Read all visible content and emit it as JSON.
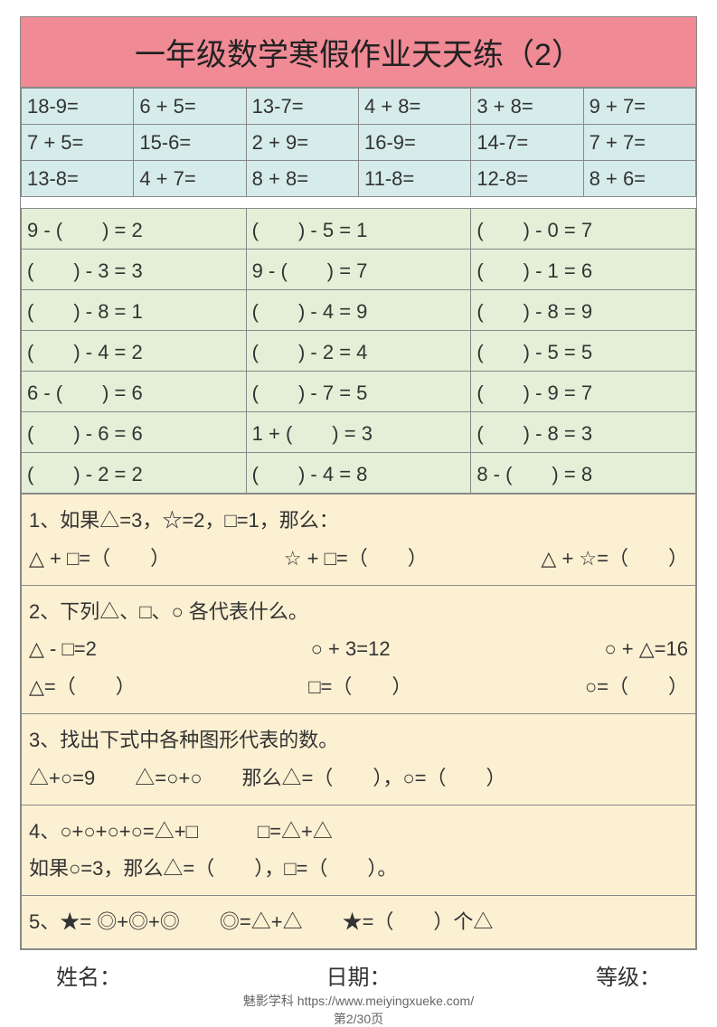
{
  "title": "一年级数学寒假作业天天练（2）",
  "section1_bg": "#d5ecea",
  "section2_bg": "#e3efd6",
  "section3_bg": "#fbf0d2",
  "title_bg": "#f08a95",
  "border_color": "#888888",
  "arith": {
    "rows": [
      [
        "18-9=",
        "6 + 5=",
        "13-7=",
        "4 + 8=",
        "3 + 8=",
        "9 + 7="
      ],
      [
        "7 + 5=",
        "15-6=",
        "2 + 9=",
        "16-9=",
        "14-7=",
        "7 + 7="
      ],
      [
        "13-8=",
        "4 + 7=",
        "8 + 8=",
        "11-8=",
        "12-8=",
        "8 + 6="
      ]
    ]
  },
  "fillblank": {
    "rows": [
      [
        "9 - (　　) = 2",
        "(　　) - 5 = 1",
        "(　　) - 0 = 7"
      ],
      [
        "(　　) - 3 = 3",
        "9 - (　　) = 7",
        "(　　) - 1 = 6"
      ],
      [
        "(　　) - 8 = 1",
        "(　　) - 4 = 9",
        "(　　) - 8 = 9"
      ],
      [
        "(　　) - 4 = 2",
        "(　　) - 2 = 4",
        "(　　) - 5 = 5"
      ],
      [
        "6 - (　　) = 6",
        "(　　) - 7 = 5",
        "(　　) - 9 = 7"
      ],
      [
        "(　　) - 6 = 6",
        "1 + (　　) = 3",
        "(　　) - 8 = 3"
      ],
      [
        "(　　) - 2 = 2",
        "(　　) - 4 = 8",
        "8 - (　　) = 8"
      ]
    ]
  },
  "problems": {
    "p1": {
      "prompt": "1、如果△=3，☆=2，□=1，那么：",
      "items": [
        "△ + □=（　　）",
        "☆ + □=（　　）",
        "△ + ☆=（　　）"
      ]
    },
    "p2": {
      "prompt": "2、下列△、□、○ 各代表什么。",
      "line1": [
        "△ - □=2",
        "○ + 3=12",
        "○ + △=16"
      ],
      "line2": [
        "△=（　　）",
        "□=（　　）",
        "○=（　　）"
      ]
    },
    "p3": {
      "prompt": "3、找出下式中各种图形代表的数。",
      "line": "△+○=9　　△=○+○　　那么△=（　　），○=（　　）"
    },
    "p4": {
      "line1": "4、○+○+○+○=△+□　　　□=△+△",
      "line2": "如果○=3，那么△=（　　），□=（　　）。"
    },
    "p5": {
      "line": "5、★= ◎+◎+◎　　◎=△+△　　★=（　　）个△"
    }
  },
  "footer": {
    "name": "姓名：",
    "date": "日期：",
    "grade": "等级：",
    "source": "魅影学科 https://www.meiyingxueke.com/",
    "page": "第2/30页"
  }
}
